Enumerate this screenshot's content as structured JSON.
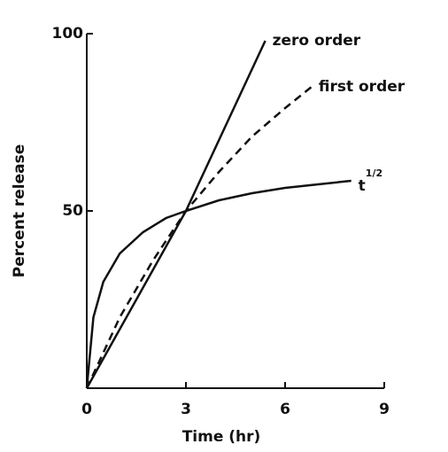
{
  "chart_data": {
    "type": "line",
    "xlabel": "Time (hr)",
    "ylabel": "Percent release",
    "xlim": [
      0,
      9
    ],
    "ylim": [
      0,
      100
    ],
    "xticks": [
      0,
      3,
      6,
      9
    ],
    "yticks": [
      50,
      100
    ],
    "series": [
      {
        "name": "zero order",
        "color": "#111111",
        "dash": false,
        "x": [
          0,
          3,
          5.4
        ],
        "values": [
          0,
          50,
          98
        ]
      },
      {
        "name": "first order",
        "color": "#111111",
        "dash": true,
        "x": [
          0,
          0.5,
          1,
          2,
          3,
          4,
          5,
          6,
          6.8
        ],
        "values": [
          0,
          10,
          20,
          36,
          50,
          61,
          71,
          79,
          85
        ]
      },
      {
        "name": "t",
        "name_sup": "1/2",
        "color": "#111111",
        "dash": false,
        "x": [
          0,
          0.2,
          0.5,
          1,
          1.7,
          2.4,
          3,
          4,
          5,
          6,
          7,
          8
        ],
        "values": [
          0,
          20,
          30,
          38,
          44,
          48,
          50,
          53,
          55,
          56.5,
          57.5,
          58.5
        ]
      }
    ]
  }
}
